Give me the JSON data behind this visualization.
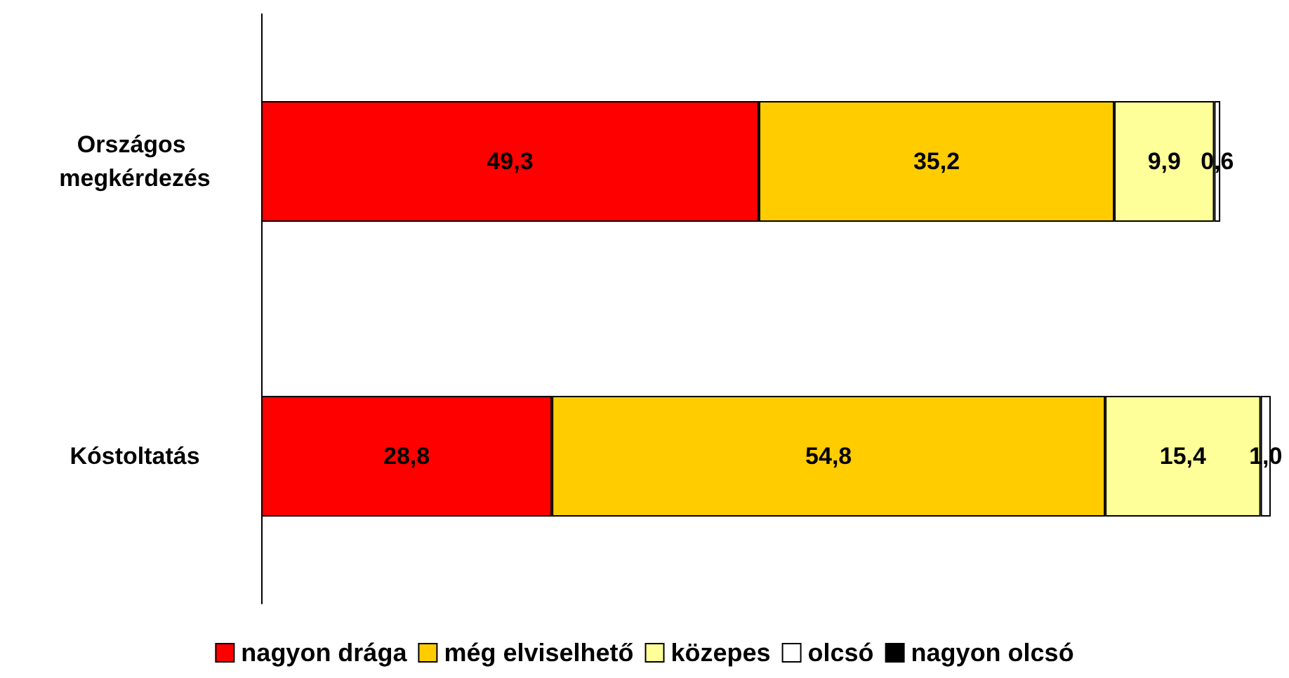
{
  "chart_data": {
    "type": "bar",
    "orientation": "horizontal",
    "stacked": true,
    "categories": [
      "Országos megkérdezés",
      "Kóstoltatás"
    ],
    "xlim": [
      0,
      100
    ],
    "tick_labels": "y",
    "grid": false,
    "legend": "bottom",
    "series": [
      {
        "name": "nagyon drága",
        "color": "#ff0000",
        "values": [
          49.3,
          28.8
        ],
        "value_labels": [
          "49,3",
          "28,8"
        ]
      },
      {
        "name": "még elviselhető",
        "color": "#ffcc00",
        "values": [
          35.2,
          54.8
        ],
        "value_labels": [
          "35,2",
          "54,8"
        ]
      },
      {
        "name": "közepes",
        "color": "#ffff99",
        "values": [
          9.9,
          15.4
        ],
        "value_labels": [
          "9,9",
          "15,4"
        ]
      },
      {
        "name": "olcsó",
        "color": "#ffffff",
        "values": [
          0.6,
          1.0
        ],
        "value_labels": [
          "0,6",
          "1,0"
        ]
      },
      {
        "name": "nagyon olcsó",
        "color": "#000000",
        "values": [
          null,
          null
        ],
        "value_labels": [
          null,
          null
        ]
      }
    ]
  }
}
